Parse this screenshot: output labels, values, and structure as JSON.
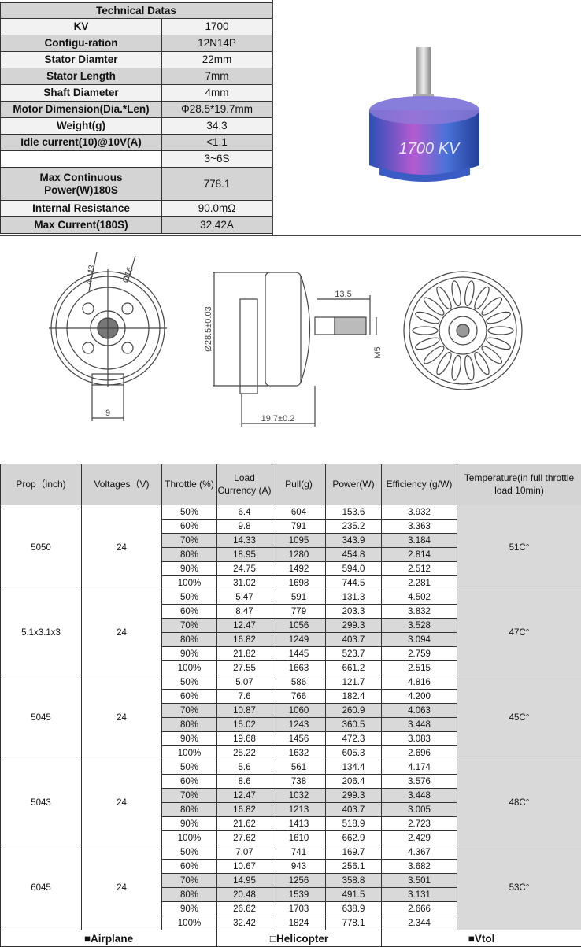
{
  "spec_table": {
    "title": "Technical Datas",
    "rows": [
      {
        "label": "KV",
        "value": "1700"
      },
      {
        "label": "Configu-ration",
        "value": "12N14P"
      },
      {
        "label": "Stator Diamter",
        "value": "22mm"
      },
      {
        "label": "Stator Length",
        "value": "7mm"
      },
      {
        "label": "Shaft Diameter",
        "value": "4mm"
      },
      {
        "label": "Motor Dimension(Dia.*Len)",
        "value": "Φ28.5*19.7mm"
      },
      {
        "label": "Weight(g)",
        "value": "34.3"
      },
      {
        "label": "Idle current(10)@10V(A)",
        "value": "<1.1"
      },
      {
        "label": "",
        "value": "3~6S"
      },
      {
        "label": "Max Continuous Power(W)180S",
        "value": "778.1"
      },
      {
        "label": "Internal Resistance",
        "value": "90.0mΩ"
      },
      {
        "label": "Max Current(180S)",
        "value": "32.42A"
      }
    ]
  },
  "motor_photo": {
    "engraving": "1700 KV"
  },
  "drawing": {
    "front_labels": {
      "holes": "4-M3",
      "circle": "Ø16",
      "width": "9"
    },
    "side_labels": {
      "diameter": "Ø28.5±0.03",
      "shaft_len": "13.5",
      "length": "19.7±0.2",
      "thread": "M5"
    }
  },
  "perf_table": {
    "headers": [
      "Prop（inch)",
      "Voltages（V)",
      "Throttle (%)",
      "Load Currency (A)",
      "Pull(g)",
      "Power(W)",
      "Efficiency (g/W)",
      "Temperature(in full throttle load 10min)"
    ],
    "groups": [
      {
        "prop": "5050",
        "voltage": "24",
        "temperature": "51C°",
        "rows": [
          [
            "50%",
            "6.4",
            "604",
            "153.6",
            "3.932"
          ],
          [
            "60%",
            "9.8",
            "791",
            "235.2",
            "3.363"
          ],
          [
            "70%",
            "14.33",
            "1095",
            "343.9",
            "3.184"
          ],
          [
            "80%",
            "18.95",
            "1280",
            "454.8",
            "2.814"
          ],
          [
            "90%",
            "24.75",
            "1492",
            "594.0",
            "2.512"
          ],
          [
            "100%",
            "31.02",
            "1698",
            "744.5",
            "2.281"
          ]
        ]
      },
      {
        "prop": "5.1x3.1x3",
        "voltage": "24",
        "temperature": "47C°",
        "rows": [
          [
            "50%",
            "5.47",
            "591",
            "131.3",
            "4.502"
          ],
          [
            "60%",
            "8.47",
            "779",
            "203.3",
            "3.832"
          ],
          [
            "70%",
            "12.47",
            "1056",
            "299.3",
            "3.528"
          ],
          [
            "80%",
            "16.82",
            "1249",
            "403.7",
            "3.094"
          ],
          [
            "90%",
            "21.82",
            "1445",
            "523.7",
            "2.759"
          ],
          [
            "100%",
            "27.55",
            "1663",
            "661.2",
            "2.515"
          ]
        ]
      },
      {
        "prop": "5045",
        "voltage": "24",
        "temperature": "45C°",
        "rows": [
          [
            "50%",
            "5.07",
            "586",
            "121.7",
            "4.816"
          ],
          [
            "60%",
            "7.6",
            "766",
            "182.4",
            "4.200"
          ],
          [
            "70%",
            "10.87",
            "1060",
            "260.9",
            "4.063"
          ],
          [
            "80%",
            "15.02",
            "1243",
            "360.5",
            "3.448"
          ],
          [
            "90%",
            "19.68",
            "1456",
            "472.3",
            "3.083"
          ],
          [
            "100%",
            "25.22",
            "1632",
            "605.3",
            "2.696"
          ]
        ]
      },
      {
        "prop": "5043",
        "voltage": "24",
        "temperature": "48C°",
        "rows": [
          [
            "50%",
            "5.6",
            "561",
            "134.4",
            "4.174"
          ],
          [
            "60%",
            "8.6",
            "738",
            "206.4",
            "3.576"
          ],
          [
            "70%",
            "12.47",
            "1032",
            "299.3",
            "3.448"
          ],
          [
            "80%",
            "16.82",
            "1213",
            "403.7",
            "3.005"
          ],
          [
            "90%",
            "21.62",
            "1413",
            "518.9",
            "2.723"
          ],
          [
            "100%",
            "27.62",
            "1610",
            "662.9",
            "2.429"
          ]
        ]
      },
      {
        "prop": "6045",
        "voltage": "24",
        "temperature": "53C°",
        "rows": [
          [
            "50%",
            "7.07",
            "741",
            "169.7",
            "4.367"
          ],
          [
            "60%",
            "10.67",
            "943",
            "256.1",
            "3.682"
          ],
          [
            "70%",
            "14.95",
            "1256",
            "358.8",
            "3.501"
          ],
          [
            "80%",
            "20.48",
            "1539",
            "491.5",
            "3.131"
          ],
          [
            "90%",
            "26.62",
            "1703",
            "638.9",
            "2.666"
          ],
          [
            "100%",
            "32.42",
            "1824",
            "778.1",
            "2.344"
          ]
        ]
      }
    ],
    "footer": [
      {
        "label": "■Airplane",
        "checked": true
      },
      {
        "label": "□Helicopter",
        "checked": false
      },
      {
        "label": "■Vtol",
        "checked": true
      }
    ]
  }
}
